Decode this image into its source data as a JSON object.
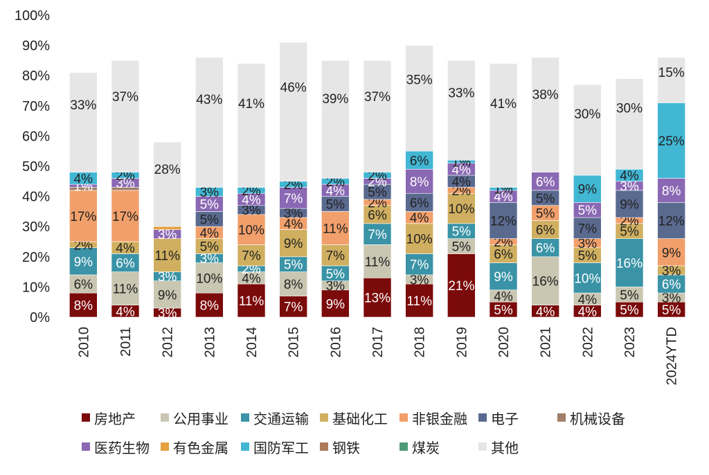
{
  "chart_data": {
    "type": "bar",
    "stacked": true,
    "title": "",
    "xlabel": "",
    "ylabel": "",
    "ylim": [
      0,
      100
    ],
    "y_ticks": [
      "0%",
      "10%",
      "20%",
      "30%",
      "40%",
      "50%",
      "60%",
      "70%",
      "80%",
      "90%",
      "100%"
    ],
    "categories": [
      "2010",
      "2011",
      "2012",
      "2013",
      "2014",
      "2015",
      "2016",
      "2017",
      "2018",
      "2019",
      "2020",
      "2021",
      "2022",
      "2023",
      "2024YTD"
    ],
    "legend_position": "bottom",
    "series": [
      {
        "name": "房地产",
        "color": "#7b0a0a",
        "label_color": "#ffffff",
        "values": [
          8,
          4,
          3,
          8,
          11,
          7,
          9,
          13,
          11,
          21,
          5,
          4,
          4,
          5,
          5
        ]
      },
      {
        "name": "公用事业",
        "color": "#c9c6b2",
        "label_color": "#222222",
        "values": [
          6,
          11,
          9,
          10,
          4,
          8,
          3,
          11,
          3,
          5,
          4,
          16,
          4,
          5,
          3
        ]
      },
      {
        "name": "交通运输",
        "color": "#3a93a6",
        "label_color": "#ffffff",
        "values": [
          9,
          6,
          3,
          3,
          2,
          5,
          5,
          7,
          7,
          5,
          9,
          6,
          10,
          16,
          6
        ]
      },
      {
        "name": "基础化工",
        "color": "#d0b060",
        "label_color": "#222222",
        "values": [
          2,
          4,
          11,
          5,
          7,
          9,
          7,
          6,
          10,
          10,
          6,
          6,
          5,
          5,
          3
        ]
      },
      {
        "name": "非银金融",
        "color": "#f2a06b",
        "label_color": "#222222",
        "values": [
          17,
          17,
          0,
          4,
          10,
          4,
          11,
          2,
          4,
          2,
          2,
          5,
          3,
          2,
          9
        ]
      },
      {
        "name": "电子",
        "color": "#5a6a8f",
        "label_color": "#222222",
        "values": [
          0,
          0,
          0,
          5,
          3,
          3,
          5,
          5,
          6,
          4,
          12,
          5,
          7,
          9,
          12
        ]
      },
      {
        "name": "机械设备",
        "color": "#a08068",
        "label_color": "#222222",
        "values": [
          1,
          1,
          0,
          0,
          0,
          0,
          0,
          0,
          0,
          0,
          0,
          0,
          0,
          0,
          0
        ]
      },
      {
        "name": "医药生物",
        "color": "#8a68b3",
        "label_color": "#ffffff",
        "values": [
          1,
          3,
          3,
          5,
          4,
          7,
          4,
          2,
          8,
          4,
          4,
          6,
          5,
          3,
          8
        ]
      },
      {
        "name": "有色金属",
        "color": "#e5a03f",
        "label_color": "#222222",
        "values": [
          0,
          0,
          1,
          0,
          0,
          0,
          0,
          0,
          0,
          0,
          0,
          0,
          0,
          0,
          0
        ]
      },
      {
        "name": "国防军工",
        "color": "#41b7d4",
        "label_color": "#222222",
        "values": [
          4,
          2,
          0,
          3,
          2,
          2,
          2,
          2,
          6,
          1,
          1,
          0,
          9,
          4,
          25
        ]
      },
      {
        "name": "钢铁",
        "color": "#ad7a5a",
        "label_color": "#222222",
        "values": [
          0,
          0,
          0,
          0,
          0,
          0,
          0,
          0,
          0,
          0,
          0,
          0,
          0,
          0,
          0
        ]
      },
      {
        "name": "煤炭",
        "color": "#4f9b78",
        "label_color": "#222222",
        "values": [
          0,
          0,
          0,
          0,
          0,
          0,
          0,
          0,
          0,
          0,
          0,
          0,
          0,
          0,
          0
        ]
      },
      {
        "name": "其他",
        "color": "#e6e6e6",
        "label_color": "#222222",
        "values": [
          33,
          37,
          28,
          43,
          41,
          46,
          39,
          37,
          35,
          33,
          41,
          38,
          30,
          30,
          15
        ]
      }
    ]
  }
}
